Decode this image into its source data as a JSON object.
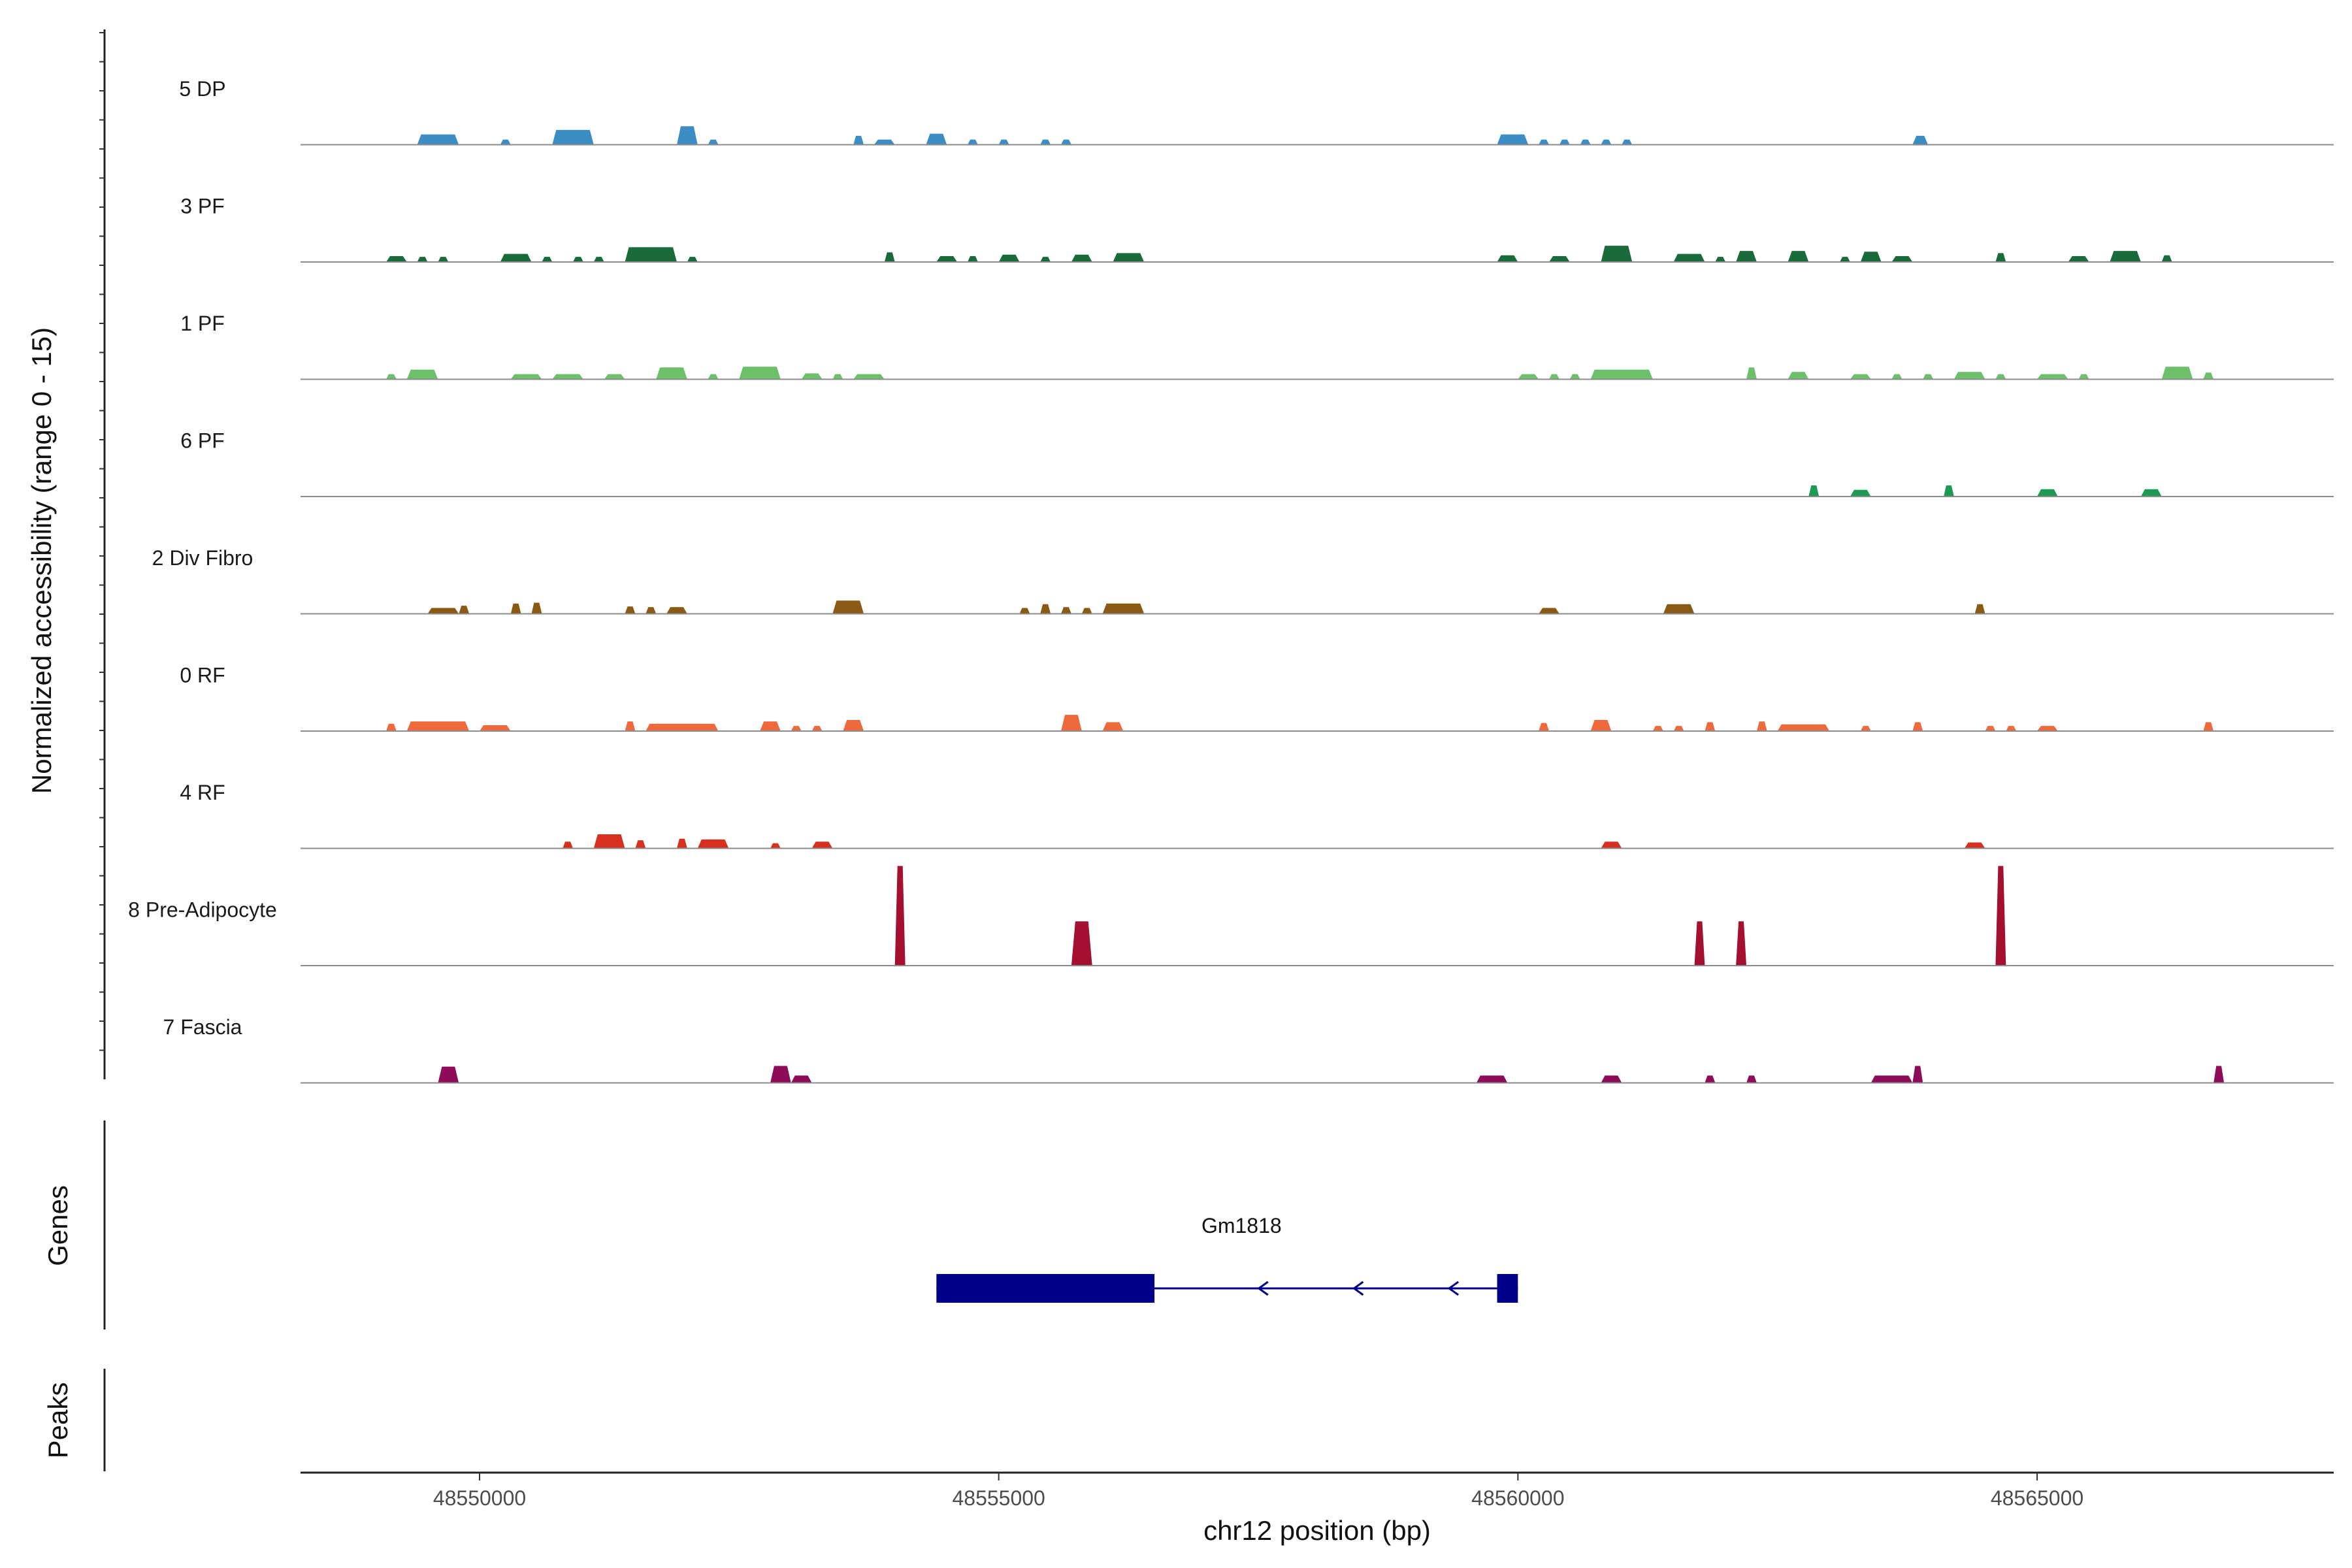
{
  "chart_data": {
    "type": "coverage",
    "chromosome": "chr12",
    "xlim": [
      48548300,
      48568000
    ],
    "xlabel": "chr12 position (bp)",
    "x_ticks": [
      48550000,
      48555000,
      48560000,
      48565000
    ],
    "x_tick_labels": [
      "48550000",
      "48555000",
      "48560000",
      "48565000"
    ],
    "coverage_ylabel": "Normalized accessibility (range 0 - 15)",
    "ylim": [
      0,
      15
    ],
    "genes_panel_label": "Genes",
    "peaks_panel_label": "Peaks",
    "tracks": [
      {
        "name": "5 DP",
        "color": "#3C8DC4",
        "regions": [
          [
            48549400,
            48549800,
            1.4
          ],
          [
            48550200,
            48550300,
            0.7
          ],
          [
            48550700,
            48551100,
            2.0
          ],
          [
            48551900,
            48552100,
            2.5
          ],
          [
            48552200,
            48552300,
            0.7
          ],
          [
            48553600,
            48553700,
            1.2
          ],
          [
            48553800,
            48554000,
            0.7
          ],
          [
            48554300,
            48554500,
            1.5
          ],
          [
            48554700,
            48554800,
            0.7
          ],
          [
            48555000,
            48555100,
            0.7
          ],
          [
            48555400,
            48555500,
            0.7
          ],
          [
            48555600,
            48555700,
            0.7
          ],
          [
            48559800,
            48560100,
            1.4
          ],
          [
            48560200,
            48560300,
            0.7
          ],
          [
            48560400,
            48560500,
            0.7
          ],
          [
            48560600,
            48560700,
            0.7
          ],
          [
            48560800,
            48560900,
            0.7
          ],
          [
            48561000,
            48561100,
            0.7
          ],
          [
            48563800,
            48563950,
            1.2
          ]
        ]
      },
      {
        "name": "3 PF",
        "color": "#1A6B3C",
        "regions": [
          [
            48549100,
            48549300,
            0.8
          ],
          [
            48549400,
            48549500,
            0.7
          ],
          [
            48549600,
            48549700,
            0.7
          ],
          [
            48550200,
            48550500,
            1.1
          ],
          [
            48550600,
            48550700,
            0.7
          ],
          [
            48550900,
            48551000,
            0.7
          ],
          [
            48551100,
            48551200,
            0.7
          ],
          [
            48551400,
            48551900,
            2.0
          ],
          [
            48552000,
            48552100,
            0.7
          ],
          [
            48553900,
            48554000,
            1.3
          ],
          [
            48554400,
            48554600,
            0.8
          ],
          [
            48554700,
            48554800,
            0.8
          ],
          [
            48555000,
            48555200,
            1.0
          ],
          [
            48555400,
            48555500,
            0.7
          ],
          [
            48555700,
            48555900,
            1.0
          ],
          [
            48556100,
            48556400,
            1.2
          ],
          [
            48559800,
            48560000,
            0.9
          ],
          [
            48560300,
            48560500,
            0.8
          ],
          [
            48560800,
            48561100,
            2.2
          ],
          [
            48561500,
            48561800,
            1.1
          ],
          [
            48561900,
            48562000,
            0.7
          ],
          [
            48562100,
            48562300,
            1.5
          ],
          [
            48562600,
            48562800,
            1.5
          ],
          [
            48563100,
            48563200,
            0.7
          ],
          [
            48563300,
            48563500,
            1.4
          ],
          [
            48563600,
            48563800,
            0.8
          ],
          [
            48564600,
            48564700,
            1.2
          ],
          [
            48565300,
            48565500,
            0.8
          ],
          [
            48565700,
            48566000,
            1.5
          ],
          [
            48566200,
            48566300,
            0.9
          ]
        ]
      },
      {
        "name": "1 PF",
        "color": "#6DC06A",
        "regions": [
          [
            48549100,
            48549200,
            0.7
          ],
          [
            48549300,
            48549600,
            1.3
          ],
          [
            48550300,
            48550600,
            0.7
          ],
          [
            48550700,
            48551000,
            0.7
          ],
          [
            48551200,
            48551400,
            0.7
          ],
          [
            48551700,
            48552000,
            1.6
          ],
          [
            48552200,
            48552300,
            0.7
          ],
          [
            48552500,
            48552900,
            1.7
          ],
          [
            48553100,
            48553300,
            0.8
          ],
          [
            48553400,
            48553500,
            0.7
          ],
          [
            48553600,
            48553900,
            0.7
          ],
          [
            48560000,
            48560200,
            0.7
          ],
          [
            48560300,
            48560400,
            0.7
          ],
          [
            48560500,
            48560600,
            0.7
          ],
          [
            48560700,
            48561300,
            1.3
          ],
          [
            48562200,
            48562300,
            1.6
          ],
          [
            48562600,
            48562800,
            1.0
          ],
          [
            48563200,
            48563400,
            0.7
          ],
          [
            48563600,
            48563700,
            0.7
          ],
          [
            48563900,
            48564000,
            0.7
          ],
          [
            48564200,
            48564500,
            1.0
          ],
          [
            48564600,
            48564700,
            0.7
          ],
          [
            48565000,
            48565300,
            0.7
          ],
          [
            48565400,
            48565500,
            0.7
          ],
          [
            48566200,
            48566500,
            1.7
          ],
          [
            48566600,
            48566700,
            0.9
          ]
        ]
      },
      {
        "name": "6 PF",
        "color": "#1F9A55",
        "regions": [
          [
            48562800,
            48562900,
            1.5
          ],
          [
            48563200,
            48563400,
            0.9
          ],
          [
            48564100,
            48564200,
            1.5
          ],
          [
            48565000,
            48565200,
            1.0
          ],
          [
            48566000,
            48566200,
            1.0
          ]
        ]
      },
      {
        "name": "2 Div Fibro",
        "color": "#8A5A14",
        "regions": [
          [
            48549500,
            48549800,
            0.8
          ],
          [
            48549800,
            48549900,
            1.1
          ],
          [
            48550300,
            48550400,
            1.4
          ],
          [
            48550500,
            48550600,
            1.5
          ],
          [
            48551400,
            48551500,
            1.0
          ],
          [
            48551600,
            48551700,
            0.9
          ],
          [
            48551800,
            48552000,
            0.9
          ],
          [
            48553400,
            48553700,
            1.8
          ],
          [
            48555200,
            48555300,
            0.8
          ],
          [
            48555400,
            48555500,
            1.3
          ],
          [
            48555600,
            48555700,
            0.9
          ],
          [
            48555800,
            48555900,
            0.8
          ],
          [
            48556000,
            48556400,
            1.4
          ],
          [
            48560200,
            48560400,
            0.8
          ],
          [
            48561400,
            48561700,
            1.3
          ],
          [
            48564400,
            48564500,
            1.3
          ]
        ]
      },
      {
        "name": "0 RF",
        "color": "#EE6A3C",
        "regions": [
          [
            48549100,
            48549200,
            1.0
          ],
          [
            48549300,
            48549900,
            1.3
          ],
          [
            48550000,
            48550300,
            0.8
          ],
          [
            48551400,
            48551500,
            1.3
          ],
          [
            48551600,
            48552300,
            1.0
          ],
          [
            48552700,
            48552900,
            1.3
          ],
          [
            48553000,
            48553100,
            0.7
          ],
          [
            48553200,
            48553300,
            0.7
          ],
          [
            48553500,
            48553700,
            1.5
          ],
          [
            48555600,
            48555800,
            2.2
          ],
          [
            48556000,
            48556200,
            1.2
          ],
          [
            48560200,
            48560300,
            1.1
          ],
          [
            48560700,
            48560900,
            1.5
          ],
          [
            48561300,
            48561400,
            0.7
          ],
          [
            48561500,
            48561600,
            0.7
          ],
          [
            48561800,
            48561900,
            1.2
          ],
          [
            48562300,
            48562400,
            1.3
          ],
          [
            48562500,
            48563000,
            0.9
          ],
          [
            48563300,
            48563400,
            0.7
          ],
          [
            48563800,
            48563900,
            1.2
          ],
          [
            48564500,
            48564600,
            0.7
          ],
          [
            48564700,
            48564800,
            0.7
          ],
          [
            48565000,
            48565200,
            0.7
          ],
          [
            48566600,
            48566700,
            1.2
          ]
        ]
      },
      {
        "name": "4 RF",
        "color": "#D7301F",
        "regions": [
          [
            48550800,
            48550900,
            0.9
          ],
          [
            48551100,
            48551400,
            1.9
          ],
          [
            48551500,
            48551600,
            1.1
          ],
          [
            48551900,
            48552000,
            1.3
          ],
          [
            48552100,
            48552400,
            1.2
          ],
          [
            48552800,
            48552900,
            0.7
          ],
          [
            48553200,
            48553400,
            0.9
          ],
          [
            48560800,
            48561000,
            0.9
          ],
          [
            48564300,
            48564500,
            0.8
          ]
        ]
      },
      {
        "name": "8 Pre-Adipocyte",
        "color": "#A50F30",
        "regions": [
          [
            48554000,
            48554100,
            13.5
          ],
          [
            48555700,
            48555900,
            6.0
          ],
          [
            48561700,
            48561800,
            6.0
          ],
          [
            48562100,
            48562200,
            6.0
          ],
          [
            48564600,
            48564700,
            13.5
          ]
        ]
      },
      {
        "name": "7 Fascia",
        "color": "#8E0B5A",
        "regions": [
          [
            48549600,
            48549800,
            2.2
          ],
          [
            48552800,
            48553000,
            2.3
          ],
          [
            48553000,
            48553200,
            1.0
          ],
          [
            48559600,
            48559900,
            1.0
          ],
          [
            48560800,
            48561000,
            1.0
          ],
          [
            48561800,
            48561900,
            1.0
          ],
          [
            48562200,
            48562300,
            1.0
          ],
          [
            48563400,
            48563800,
            1.0
          ],
          [
            48563800,
            48563900,
            2.3
          ],
          [
            48566700,
            48566800,
            2.3
          ]
        ]
      }
    ],
    "genes": [
      {
        "name": "Gm1818",
        "strand": "-",
        "color": "#00008B",
        "start": 48554400,
        "end": 48560000,
        "exons": [
          [
            48554400,
            48556500
          ],
          [
            48559800,
            48560000
          ]
        ]
      }
    ]
  }
}
